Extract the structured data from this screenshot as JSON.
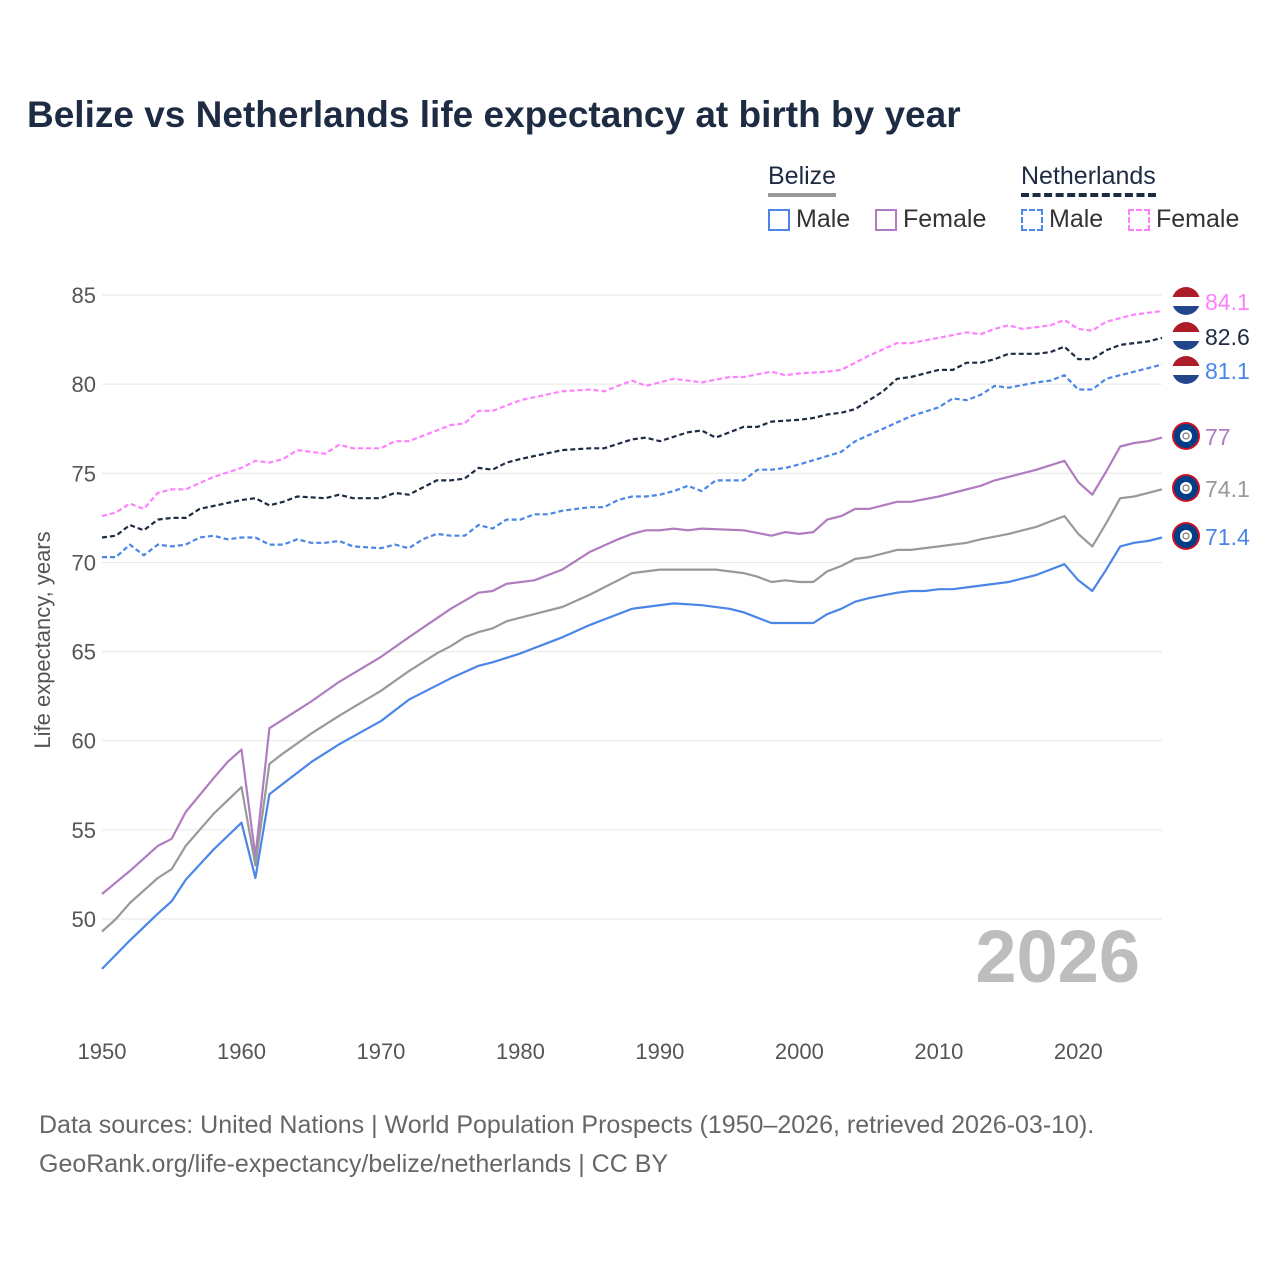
{
  "chart_data": {
    "type": "line",
    "title": "Belize vs Netherlands life expectancy at birth by year",
    "xlabel": "",
    "ylabel": "Life expectancy, years",
    "xlim": [
      1950,
      2026
    ],
    "ylim": [
      46,
      87
    ],
    "x_ticks": [
      1950,
      1960,
      1970,
      1980,
      1990,
      2000,
      2010,
      2020
    ],
    "y_ticks": [
      50,
      55,
      60,
      65,
      70,
      75,
      80,
      85
    ],
    "grid": true,
    "year_watermark": "2026",
    "legend": {
      "placement": "top-right",
      "groups": [
        {
          "name": "Belize",
          "items": [
            "Male",
            "Female"
          ]
        },
        {
          "name": "Netherlands",
          "items": [
            "Male",
            "Female"
          ]
        }
      ]
    },
    "series": [
      {
        "name": "Netherlands Female",
        "country": "Netherlands",
        "sex": "Female",
        "color": "#ff80ff",
        "dashed": true,
        "end_label": "84.1",
        "x": [
          1950,
          1951,
          1952,
          1953,
          1954,
          1955,
          1956,
          1958,
          1960,
          1961,
          1962,
          1963,
          1964,
          1965,
          1966,
          1967,
          1968,
          1970,
          1971,
          1972,
          1975,
          1976,
          1977,
          1978,
          1980,
          1983,
          1985,
          1986,
          1988,
          1989,
          1990,
          1991,
          1993,
          1995,
          1996,
          1998,
          1999,
          2000,
          2002,
          2003,
          2005,
          2007,
          2008,
          2010,
          2012,
          2013,
          2014,
          2015,
          2016,
          2017,
          2018,
          2019,
          2020,
          2021,
          2022,
          2024,
          2026
        ],
        "y": [
          72.6,
          72.8,
          73.3,
          73.0,
          73.9,
          74.1,
          74.1,
          74.8,
          75.3,
          75.7,
          75.6,
          75.8,
          76.3,
          76.2,
          76.1,
          76.6,
          76.4,
          76.4,
          76.8,
          76.8,
          77.7,
          77.8,
          78.5,
          78.5,
          79.1,
          79.6,
          79.7,
          79.6,
          80.2,
          79.9,
          80.1,
          80.3,
          80.1,
          80.4,
          80.4,
          80.7,
          80.5,
          80.6,
          80.7,
          80.8,
          81.6,
          82.3,
          82.3,
          82.6,
          82.9,
          82.8,
          83.1,
          83.3,
          83.1,
          83.2,
          83.3,
          83.6,
          83.1,
          83.0,
          83.5,
          83.9,
          84.1
        ]
      },
      {
        "name": "Netherlands",
        "country": "Netherlands",
        "sex": "Both",
        "color": "#1d2b43",
        "dashed": true,
        "end_label": "82.6",
        "x": [
          1950,
          1951,
          1952,
          1953,
          1954,
          1955,
          1956,
          1957,
          1960,
          1961,
          1962,
          1963,
          1964,
          1966,
          1967,
          1968,
          1970,
          1971,
          1972,
          1974,
          1975,
          1976,
          1977,
          1978,
          1979,
          1980,
          1983,
          1985,
          1986,
          1988,
          1989,
          1990,
          1992,
          1993,
          1994,
          1996,
          1997,
          1998,
          2000,
          2001,
          2002,
          2003,
          2004,
          2006,
          2007,
          2008,
          2010,
          2011,
          2012,
          2013,
          2014,
          2015,
          2017,
          2018,
          2019,
          2020,
          2021,
          2022,
          2023,
          2025,
          2026
        ],
        "y": [
          71.4,
          71.5,
          72.1,
          71.8,
          72.4,
          72.5,
          72.5,
          73.0,
          73.5,
          73.6,
          73.2,
          73.4,
          73.7,
          73.6,
          73.8,
          73.6,
          73.6,
          73.9,
          73.8,
          74.6,
          74.6,
          74.7,
          75.3,
          75.2,
          75.6,
          75.8,
          76.3,
          76.4,
          76.4,
          76.9,
          77.0,
          76.8,
          77.3,
          77.4,
          77.0,
          77.6,
          77.6,
          77.9,
          78.0,
          78.1,
          78.3,
          78.4,
          78.6,
          79.6,
          80.3,
          80.4,
          80.8,
          80.8,
          81.2,
          81.2,
          81.4,
          81.7,
          81.7,
          81.8,
          82.1,
          81.4,
          81.4,
          81.9,
          82.2,
          82.4,
          82.6
        ]
      },
      {
        "name": "Netherlands Male",
        "country": "Netherlands",
        "sex": "Male",
        "color": "#4a86e8",
        "dashed": true,
        "end_label": "81.1",
        "x": [
          1950,
          1951,
          1952,
          1953,
          1954,
          1955,
          1956,
          1957,
          1958,
          1959,
          1960,
          1961,
          1962,
          1963,
          1964,
          1965,
          1966,
          1967,
          1968,
          1970,
          1971,
          1972,
          1973,
          1974,
          1975,
          1976,
          1977,
          1978,
          1979,
          1980,
          1981,
          1982,
          1983,
          1985,
          1986,
          1987,
          1988,
          1989,
          1990,
          1991,
          1992,
          1993,
          1994,
          1995,
          1996,
          1997,
          1998,
          1999,
          2000,
          2003,
          2004,
          2006,
          2008,
          2010,
          2011,
          2012,
          2013,
          2014,
          2015,
          2017,
          2018,
          2019,
          2020,
          2021,
          2022,
          2024,
          2026
        ],
        "y": [
          70.3,
          70.3,
          71.0,
          70.4,
          71.0,
          70.9,
          71.0,
          71.4,
          71.5,
          71.3,
          71.4,
          71.4,
          71.0,
          71.0,
          71.3,
          71.1,
          71.1,
          71.2,
          70.9,
          70.8,
          71.0,
          70.8,
          71.3,
          71.6,
          71.5,
          71.5,
          72.1,
          71.9,
          72.4,
          72.4,
          72.7,
          72.7,
          72.9,
          73.1,
          73.1,
          73.5,
          73.7,
          73.7,
          73.8,
          74.0,
          74.3,
          74.0,
          74.6,
          74.6,
          74.6,
          75.2,
          75.2,
          75.3,
          75.5,
          76.2,
          76.8,
          77.5,
          78.2,
          78.7,
          79.2,
          79.1,
          79.4,
          79.9,
          79.8,
          80.1,
          80.2,
          80.5,
          79.7,
          79.7,
          80.3,
          80.7,
          81.1
        ]
      },
      {
        "name": "Belize Female",
        "country": "Belize",
        "sex": "Female",
        "color": "#b07cc0",
        "dashed": false,
        "end_label": "77",
        "x": [
          1950,
          1952,
          1954,
          1955,
          1956,
          1958,
          1959,
          1960,
          1961,
          1962,
          1963,
          1965,
          1967,
          1970,
          1972,
          1975,
          1977,
          1978,
          1979,
          1981,
          1983,
          1985,
          1987,
          1988,
          1989,
          1990,
          1991,
          1992,
          1993,
          1996,
          1998,
          1999,
          2000,
          2001,
          2002,
          2003,
          2004,
          2005,
          2007,
          2008,
          2010,
          2013,
          2014,
          2016,
          2017,
          2019,
          2020,
          2021,
          2022,
          2023,
          2024,
          2025,
          2026
        ],
        "y": [
          51.4,
          52.7,
          54.1,
          54.5,
          56.0,
          57.9,
          58.8,
          59.5,
          53.5,
          60.7,
          61.2,
          62.2,
          63.3,
          64.7,
          65.8,
          67.4,
          68.3,
          68.4,
          68.8,
          69.0,
          69.6,
          70.6,
          71.3,
          71.6,
          71.8,
          71.8,
          71.9,
          71.8,
          71.9,
          71.8,
          71.5,
          71.7,
          71.6,
          71.7,
          72.4,
          72.6,
          73.0,
          73.0,
          73.4,
          73.4,
          73.7,
          74.3,
          74.6,
          75.0,
          75.2,
          75.7,
          74.5,
          73.8,
          75.1,
          76.5,
          76.7,
          76.8,
          77.0
        ]
      },
      {
        "name": "Belize",
        "country": "Belize",
        "sex": "Both",
        "color": "#999999",
        "dashed": false,
        "end_label": "74.1",
        "x": [
          1950,
          1951,
          1952,
          1954,
          1955,
          1956,
          1958,
          1960,
          1961,
          1962,
          1963,
          1965,
          1967,
          1970,
          1972,
          1974,
          1975,
          1976,
          1977,
          1978,
          1979,
          1981,
          1983,
          1985,
          1986,
          1987,
          1988,
          1990,
          1994,
          1996,
          1997,
          1998,
          1999,
          2000,
          2001,
          2002,
          2003,
          2004,
          2005,
          2007,
          2008,
          2010,
          2012,
          2013,
          2015,
          2017,
          2018,
          2019,
          2020,
          2021,
          2022,
          2023,
          2024,
          2026
        ],
        "y": [
          49.3,
          50.0,
          50.9,
          52.3,
          52.8,
          54.1,
          55.9,
          57.4,
          53.0,
          58.7,
          59.3,
          60.4,
          61.4,
          62.8,
          63.9,
          64.9,
          65.3,
          65.8,
          66.1,
          66.3,
          66.7,
          67.1,
          67.5,
          68.2,
          68.6,
          69.0,
          69.4,
          69.6,
          69.6,
          69.4,
          69.2,
          68.9,
          69.0,
          68.9,
          68.9,
          69.5,
          69.8,
          70.2,
          70.3,
          70.7,
          70.7,
          70.9,
          71.1,
          71.3,
          71.6,
          72.0,
          72.3,
          72.6,
          71.6,
          70.9,
          72.2,
          73.6,
          73.7,
          74.1
        ]
      },
      {
        "name": "Belize Male",
        "country": "Belize",
        "sex": "Male",
        "color": "#4a86e8",
        "dashed": false,
        "end_label": "71.4",
        "x": [
          1950,
          1952,
          1954,
          1955,
          1956,
          1958,
          1960,
          1961,
          1962,
          1963,
          1965,
          1967,
          1970,
          1972,
          1975,
          1977,
          1978,
          1980,
          1982,
          1983,
          1985,
          1987,
          1988,
          1991,
          1993,
          1995,
          1996,
          1997,
          1998,
          2001,
          2002,
          2003,
          2004,
          2005,
          2007,
          2008,
          2009,
          2010,
          2011,
          2012,
          2015,
          2017,
          2019,
          2020,
          2021,
          2022,
          2023,
          2024,
          2025,
          2026
        ],
        "y": [
          47.2,
          48.8,
          50.3,
          51.0,
          52.2,
          53.9,
          55.4,
          52.3,
          57.0,
          57.6,
          58.8,
          59.8,
          61.1,
          62.3,
          63.5,
          64.2,
          64.4,
          64.9,
          65.5,
          65.8,
          66.5,
          67.1,
          67.4,
          67.7,
          67.6,
          67.4,
          67.2,
          66.9,
          66.6,
          66.6,
          67.1,
          67.4,
          67.8,
          68.0,
          68.3,
          68.4,
          68.4,
          68.5,
          68.5,
          68.6,
          68.9,
          69.3,
          69.9,
          69.0,
          68.4,
          69.6,
          70.9,
          71.1,
          71.2,
          71.4
        ]
      }
    ]
  },
  "legend": {
    "belize": "Belize",
    "netherlands": "Netherlands",
    "male": "Male",
    "female": "Female"
  },
  "colors": {
    "nl_red": "#ae1c28",
    "nl_blue": "#21468b",
    "bz_blue": "#003f87",
    "bz_red": "#ce1126"
  },
  "source": {
    "line1": "Data sources: United Nations | World Population Prospects (1950–2026, retrieved 2026-03-10).",
    "line2": "GeoRank.org/life-expectancy/belize/netherlands | CC BY"
  }
}
